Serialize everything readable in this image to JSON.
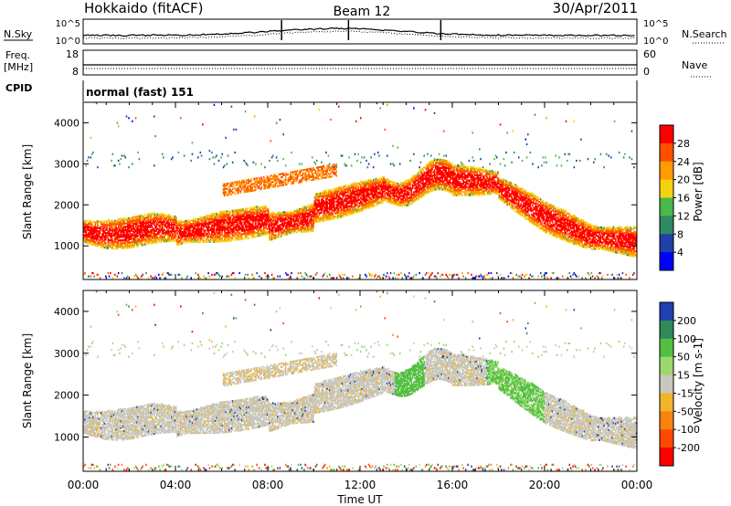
{
  "header": {
    "title": "Hokkaido (fitACF)",
    "beam": "Beam 12",
    "date": "30/Apr/2011"
  },
  "noise_panel": {
    "left_label": "N.Sky",
    "right_label": "N.Search",
    "left_ticks": [
      "10^5",
      "10^0"
    ],
    "right_ticks": [
      "10^5",
      "10^0"
    ]
  },
  "freq_panel": {
    "left_label_line1": "Freq.",
    "left_label_line2": "[MHz]",
    "right_label": "Nave",
    "left_ticks": [
      "18",
      "8"
    ],
    "right_ticks": [
      "60",
      "0"
    ]
  },
  "cpid_panel": {
    "label": "CPID",
    "value": "normal (fast) 151"
  },
  "chart_data": [
    {
      "type": "heatmap",
      "name": "Power",
      "ylabel": "Slant Range [km]",
      "xlabel": "",
      "xlim": [
        "00:00",
        "24:00"
      ],
      "ylim": [
        180,
        4500
      ],
      "x_ticks": [
        "00:00",
        "04:00",
        "08:00",
        "12:00",
        "16:00",
        "20:00",
        "00:00"
      ],
      "y_ticks": [
        "1000",
        "2000",
        "3000",
        "4000"
      ],
      "colorbar": {
        "label": "Power [dB]",
        "ticks": [
          "28",
          "24",
          "20",
          "16",
          "12",
          "8",
          "4"
        ],
        "colors": [
          "#ff0000",
          "#ff5000",
          "#ff9c00",
          "#f5d20f",
          "#4ab84a",
          "#2f8a64",
          "#2040a8",
          "#0000ff"
        ]
      }
    },
    {
      "type": "heatmap",
      "name": "Velocity",
      "ylabel": "Slant Range [km]",
      "xlabel": "Time UT",
      "xlim": [
        "00:00",
        "24:00"
      ],
      "ylim": [
        180,
        4500
      ],
      "x_ticks": [
        "00:00",
        "04:00",
        "08:00",
        "12:00",
        "16:00",
        "20:00",
        "00:00"
      ],
      "y_ticks": [
        "1000",
        "2000",
        "3000",
        "4000"
      ],
      "colorbar": {
        "label": "Velocity [m s-1]",
        "ticks": [
          "200",
          "100",
          "50",
          "15",
          "-15",
          "-50",
          "-100",
          "-200"
        ],
        "colors": [
          "#2040b0",
          "#2e8b57",
          "#54c042",
          "#9cd870",
          "#c8c8c0",
          "#f2b428",
          "#f88410",
          "#ff4800",
          "#ff0000"
        ]
      }
    }
  ]
}
